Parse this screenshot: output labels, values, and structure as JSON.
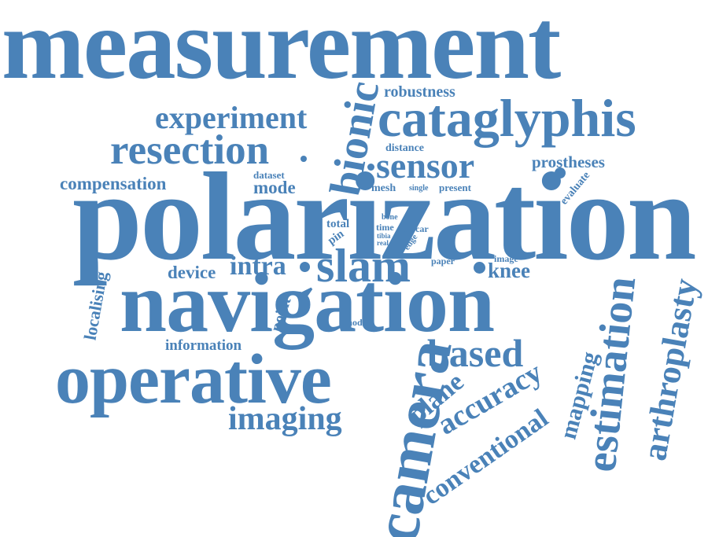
{
  "accent_color": "#4a82b8",
  "words": [
    {
      "id": "measurement",
      "text": "measurement"
    },
    {
      "id": "polarization",
      "text": "polarization"
    },
    {
      "id": "navigation",
      "text": "navigation"
    },
    {
      "id": "operative",
      "text": "operative"
    },
    {
      "id": "cataglyphis",
      "text": "cataglyphis"
    },
    {
      "id": "resection",
      "text": "resection"
    },
    {
      "id": "camera",
      "text": "camera"
    },
    {
      "id": "bionic",
      "text": "bionic"
    },
    {
      "id": "slam",
      "text": "slam"
    },
    {
      "id": "sensor",
      "text": "sensor"
    },
    {
      "id": "estimation",
      "text": "estimation"
    },
    {
      "id": "arthroplasty",
      "text": "arthroplasty"
    },
    {
      "id": "experiment",
      "text": "experiment"
    },
    {
      "id": "based",
      "text": "based"
    },
    {
      "id": "imaging",
      "text": "imaging"
    },
    {
      "id": "accuracy",
      "text": "accuracy"
    },
    {
      "id": "conventional",
      "text": "conventional"
    },
    {
      "id": "mapping",
      "text": "mapping"
    },
    {
      "id": "plane",
      "text": "plane"
    },
    {
      "id": "intra",
      "text": "intra"
    },
    {
      "id": "compensation",
      "text": "compensation"
    },
    {
      "id": "robustness",
      "text": "robustness"
    },
    {
      "id": "prostheses",
      "text": "prostheses"
    },
    {
      "id": "mode",
      "text": "mode"
    },
    {
      "id": "device",
      "text": "device"
    },
    {
      "id": "knee",
      "text": "knee"
    },
    {
      "id": "localising",
      "text": "localising"
    },
    {
      "id": "information",
      "text": "information"
    },
    {
      "id": "point",
      "text": "point"
    },
    {
      "id": "distance",
      "text": "distance"
    },
    {
      "id": "dataset",
      "text": "dataset"
    },
    {
      "id": "mesh",
      "text": "mesh"
    },
    {
      "id": "single",
      "text": "single"
    },
    {
      "id": "present",
      "text": "present"
    },
    {
      "id": "evaluate",
      "text": "evaluate"
    },
    {
      "id": "total",
      "text": "total"
    },
    {
      "id": "pin",
      "text": "pin"
    },
    {
      "id": "bone",
      "text": "bone"
    },
    {
      "id": "time",
      "text": "time"
    },
    {
      "id": "tibia",
      "text": "tibia"
    },
    {
      "id": "real",
      "text": "real"
    },
    {
      "id": "trocar",
      "text": "trocar"
    },
    {
      "id": "edge",
      "text": "edge"
    },
    {
      "id": "paper",
      "text": "paper"
    },
    {
      "id": "image",
      "text": "image"
    },
    {
      "id": "model",
      "text": "model"
    }
  ]
}
